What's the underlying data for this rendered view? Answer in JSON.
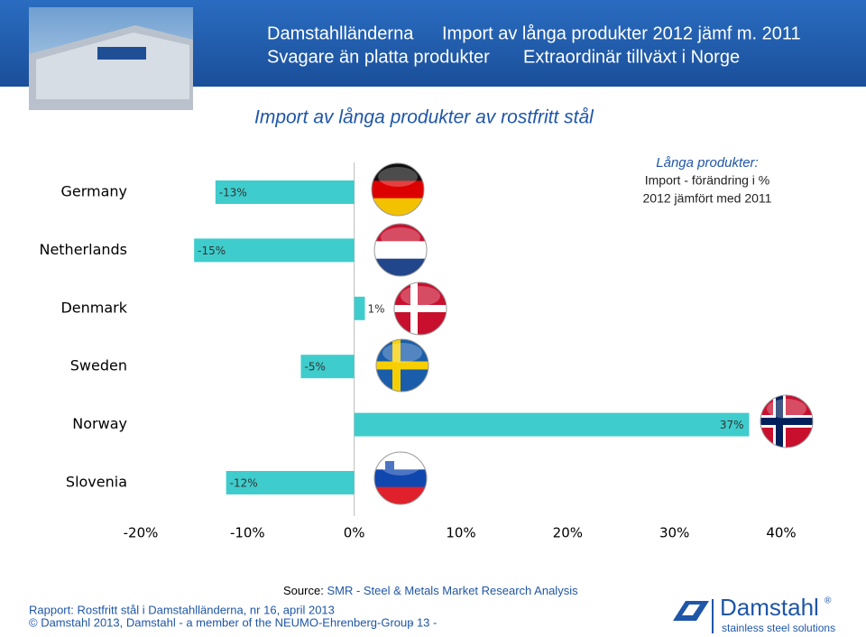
{
  "header": {
    "title_line1a": "Damstahlländerna",
    "title_line1b": "Import av långa produkter 2012 jämf m. 2011",
    "title_line2a": "Svagare än platta produkter",
    "title_line2b": "Extraordinär tillväxt i Norge"
  },
  "chart_data": {
    "type": "bar",
    "orientation": "horizontal",
    "title": "Import av långa produkter av rostfritt stål",
    "annotation": [
      "Långa produkter:",
      "Import - förändring i %",
      "2012 jämfört med 2011"
    ],
    "categories": [
      "Germany",
      "Netherlands",
      "Denmark",
      "Sweden",
      "Norway",
      "Slovenia"
    ],
    "values": [
      -13,
      -15,
      1,
      -5,
      37,
      -12
    ],
    "value_labels": [
      "-13%",
      "-15%",
      "1%",
      "-5%",
      "37%",
      "-12%"
    ],
    "color": "#3fcccc",
    "xlim": [
      -20,
      40
    ],
    "xticks": [
      {
        "value": -20,
        "label": "-20%"
      },
      {
        "value": -10,
        "label": "-10%"
      },
      {
        "value": 0,
        "label": "0%"
      },
      {
        "value": 10,
        "label": "10%"
      },
      {
        "value": 20,
        "label": "20%"
      },
      {
        "value": 30,
        "label": "30%"
      },
      {
        "value": 40,
        "label": "40%"
      }
    ],
    "grid": false
  },
  "footer": {
    "source_label": "Source:",
    "source": "SMR - Steel & Metals Market Research Analysis",
    "report": "Rapport: Rostfritt stål i Damstahlländerna, nr 16, april 2013",
    "copyright": "© Damstahl 2013, Damstahl - a member of the NEUMO-Ehrenberg-Group",
    "page": "- 13 -"
  },
  "logo": {
    "name": "Damstahl",
    "mark": "®",
    "tagline": "stainless steel solutions"
  }
}
